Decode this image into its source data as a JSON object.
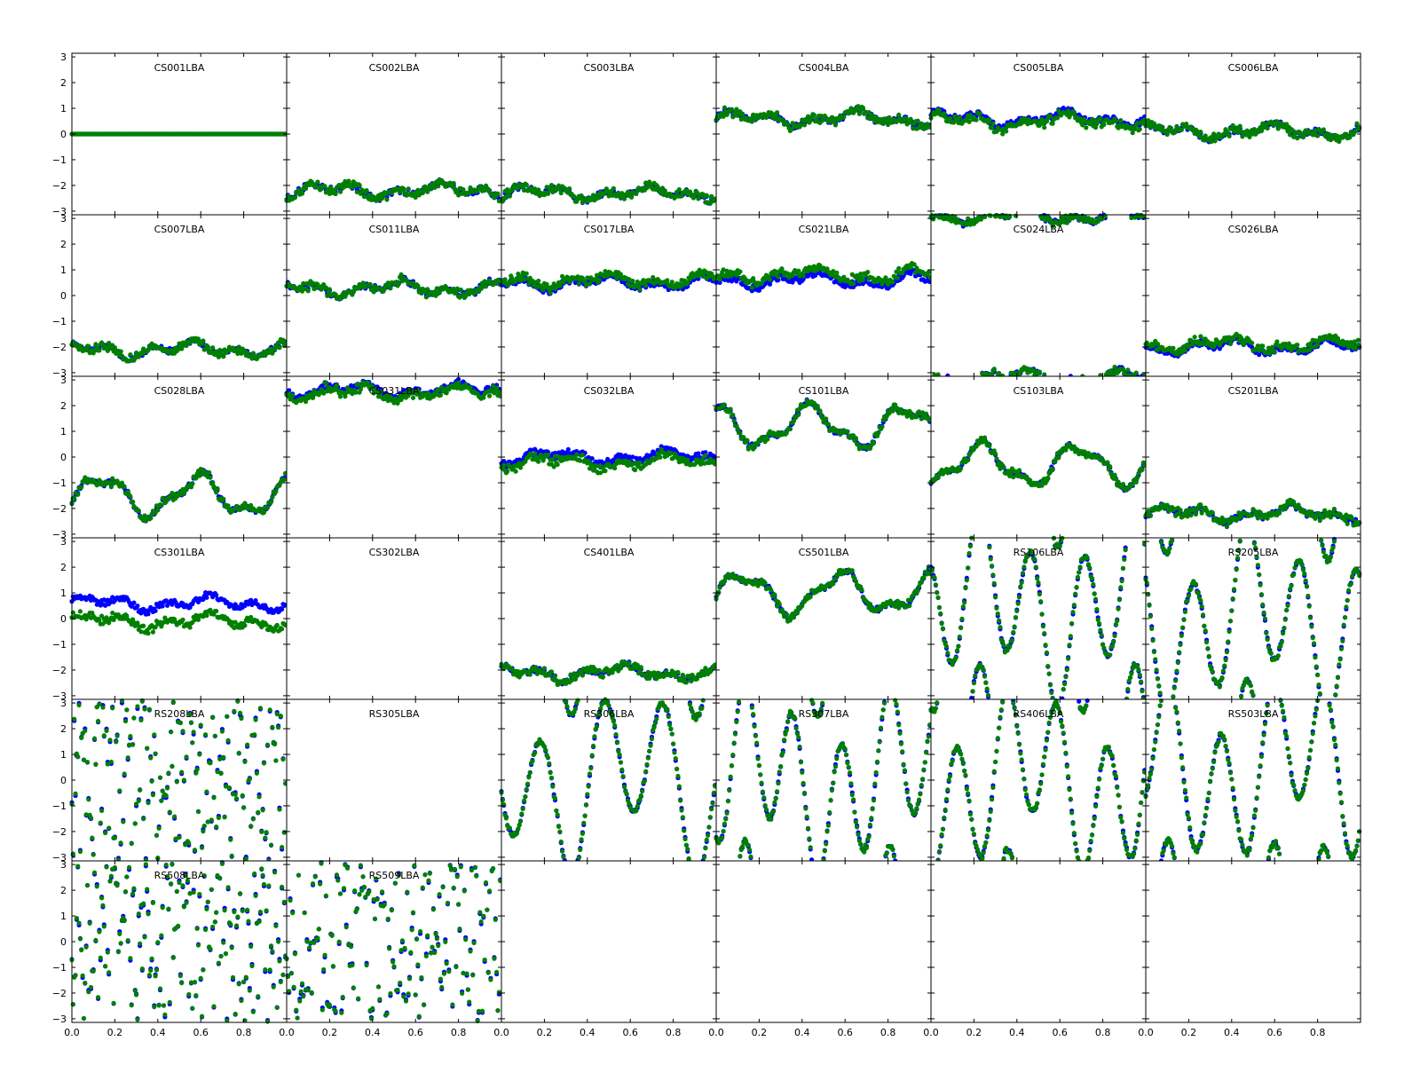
{
  "chart_data": {
    "type": "scatter",
    "layout": {
      "rows": 6,
      "cols": 6
    },
    "xlim": [
      0,
      1
    ],
    "ylim": [
      -3.14159,
      3.14159
    ],
    "x_ticks": [
      "0.0",
      "0.2",
      "0.4",
      "0.6",
      "0.8"
    ],
    "y_ticks": [
      "3",
      "2",
      "1",
      "0",
      "−1",
      "−2",
      "−3"
    ],
    "colors": {
      "series_a": "#0000ff",
      "series_b": "#008000"
    },
    "panels": [
      {
        "title": "CS001LBA",
        "a_base": 0.0,
        "b_base": 0.0,
        "pattern": "flat"
      },
      {
        "title": "CS002LBA",
        "a_base": -2.2,
        "b_base": -2.2,
        "pattern": "gentle"
      },
      {
        "title": "CS003LBA",
        "a_base": -2.3,
        "b_base": -2.3,
        "pattern": "gentle"
      },
      {
        "title": "CS004LBA",
        "a_base": 0.6,
        "b_base": 0.6,
        "pattern": "gentle"
      },
      {
        "title": "CS005LBA",
        "a_base": 0.6,
        "b_base": 0.5,
        "pattern": "gentle"
      },
      {
        "title": "CS006LBA",
        "a_base": 0.1,
        "b_base": 0.1,
        "pattern": "gentle"
      },
      {
        "title": "CS007LBA",
        "a_base": -2.1,
        "b_base": -2.1,
        "pattern": "gentle"
      },
      {
        "title": "CS011LBA",
        "a_base": 0.3,
        "b_base": 0.3,
        "pattern": "gentle"
      },
      {
        "title": "CS017LBA",
        "a_base": 0.5,
        "b_base": 0.6,
        "pattern": "gentle"
      },
      {
        "title": "CS021LBA",
        "a_base": 0.6,
        "b_base": 0.8,
        "pattern": "gentle"
      },
      {
        "title": "CS024LBA",
        "a_base": 3.1,
        "b_base": 3.1,
        "pattern": "wrap"
      },
      {
        "title": "CS026LBA",
        "a_base": -2.0,
        "b_base": -1.9,
        "pattern": "gentle"
      },
      {
        "title": "CS028LBA",
        "a_base": -1.5,
        "b_base": -1.5,
        "pattern": "wave"
      },
      {
        "title": "CS031LBA",
        "a_base": 2.6,
        "b_base": 2.5,
        "pattern": "gentle"
      },
      {
        "title": "CS032LBA",
        "a_base": 0.0,
        "b_base": -0.2,
        "pattern": "gentle"
      },
      {
        "title": "CS101LBA",
        "a_base": 1.2,
        "b_base": 1.2,
        "pattern": "wave"
      },
      {
        "title": "CS103LBA",
        "a_base": -0.3,
        "b_base": -0.3,
        "pattern": "wave"
      },
      {
        "title": "CS201LBA",
        "a_base": -2.2,
        "b_base": -2.2,
        "pattern": "gentle"
      },
      {
        "title": "CS301LBA",
        "a_base": 0.6,
        "b_base": -0.1,
        "pattern": "gentle"
      },
      {
        "title": "CS302LBA",
        "a_base": null,
        "b_base": null,
        "pattern": "empty"
      },
      {
        "title": "CS401LBA",
        "a_base": -2.1,
        "b_base": -2.1,
        "pattern": "gentle"
      },
      {
        "title": "CS501LBA",
        "a_base": 1.0,
        "b_base": 1.0,
        "pattern": "wave"
      },
      {
        "title": "RS106LBA",
        "a_base": 0.5,
        "b_base": 0.5,
        "pattern": "fast"
      },
      {
        "title": "RS205LBA",
        "a_base": 0.0,
        "b_base": 0.0,
        "pattern": "fast"
      },
      {
        "title": "RS208LBA",
        "a_base": 0.0,
        "b_base": 0.0,
        "pattern": "noise"
      },
      {
        "title": "RS305LBA",
        "a_base": null,
        "b_base": null,
        "pattern": "empty"
      },
      {
        "title": "RS306LBA",
        "a_base": 0.0,
        "b_base": 0.0,
        "pattern": "fast"
      },
      {
        "title": "RS307LBA",
        "a_base": 0.0,
        "b_base": 0.0,
        "pattern": "fast"
      },
      {
        "title": "RS406LBA",
        "a_base": 0.0,
        "b_base": 0.0,
        "pattern": "fast"
      },
      {
        "title": "RS503LBA",
        "a_base": 0.5,
        "b_base": 0.5,
        "pattern": "fast"
      },
      {
        "title": "RS508LBA",
        "a_base": 0.0,
        "b_base": 0.0,
        "pattern": "noise"
      },
      {
        "title": "RS509LBA",
        "a_base": 0.0,
        "b_base": 0.0,
        "pattern": "noise"
      },
      {
        "title": "",
        "a_base": null,
        "b_base": null,
        "pattern": "empty"
      },
      {
        "title": "",
        "a_base": null,
        "b_base": null,
        "pattern": "empty"
      },
      {
        "title": "",
        "a_base": null,
        "b_base": null,
        "pattern": "empty"
      },
      {
        "title": "",
        "a_base": null,
        "b_base": null,
        "pattern": "empty"
      }
    ]
  }
}
